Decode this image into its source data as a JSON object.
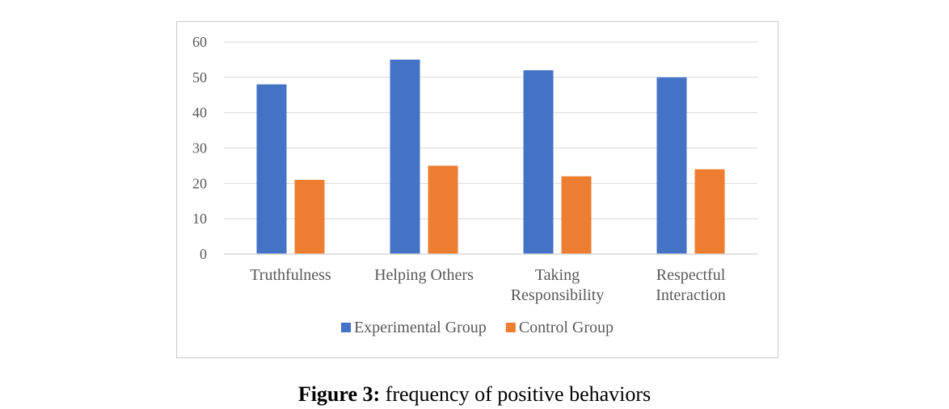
{
  "chart_data": {
    "type": "bar",
    "title": "",
    "xlabel": "",
    "ylabel": "",
    "categories": [
      [
        "Truthfulness"
      ],
      [
        "Helping Others"
      ],
      [
        "Taking",
        "Responsibility"
      ],
      [
        "Respectful",
        "Interaction"
      ]
    ],
    "series": [
      {
        "name": "Experimental Group",
        "color": "#4472C4",
        "values": [
          48,
          55,
          52,
          50
        ]
      },
      {
        "name": "Control Group",
        "color": "#ED7D31",
        "values": [
          21,
          25,
          22,
          24
        ]
      }
    ],
    "ylim": [
      0,
      60
    ],
    "yticks": [
      0,
      10,
      20,
      30,
      40,
      50,
      60
    ],
    "grid": true,
    "legend_position": "bottom",
    "gridline_color": "#d9d9d9"
  },
  "caption": {
    "label": "Figure 3:",
    "text": " frequency of positive behaviors"
  }
}
